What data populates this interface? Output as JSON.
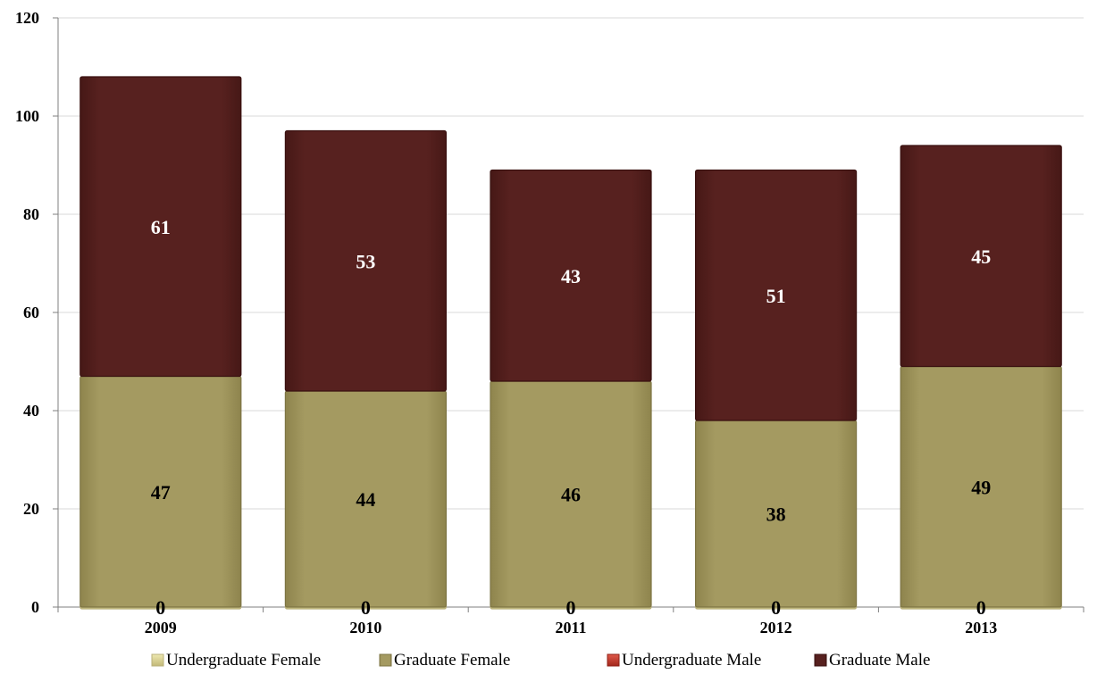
{
  "chart_data": {
    "type": "bar",
    "stacked": true,
    "title": "",
    "xlabel": "",
    "ylabel": "",
    "categories": [
      "2009",
      "2010",
      "2011",
      "2012",
      "2013"
    ],
    "ylim": [
      0,
      120
    ],
    "yticks": [
      0,
      20,
      40,
      60,
      80,
      100,
      120
    ],
    "grid": true,
    "legend_position": "bottom",
    "series": [
      {
        "name": "Undergraduate Female",
        "values": [
          0,
          0,
          0,
          0,
          0
        ],
        "labels": [
          "0",
          "0",
          "0",
          "0",
          "0"
        ],
        "color": "#d6cf8e",
        "label_color": "#000000"
      },
      {
        "name": "Graduate Female",
        "values": [
          47,
          44,
          46,
          38,
          49
        ],
        "labels": [
          "47",
          "44",
          "46",
          "38",
          "49"
        ],
        "color": "#a0955c",
        "label_color": "#000000"
      },
      {
        "name": "Undergraduate Male",
        "values": [
          0,
          0,
          0,
          0,
          0
        ],
        "labels": [
          "0",
          "0",
          "0",
          "0",
          "0"
        ],
        "color": "#c0392b",
        "label_color": "#ffffff"
      },
      {
        "name": "Graduate Male",
        "values": [
          61,
          53,
          43,
          51,
          45
        ],
        "labels": [
          "61",
          "53",
          "43",
          "51",
          "45"
        ],
        "color": "#55201f",
        "label_color": "#ffffff"
      }
    ]
  }
}
